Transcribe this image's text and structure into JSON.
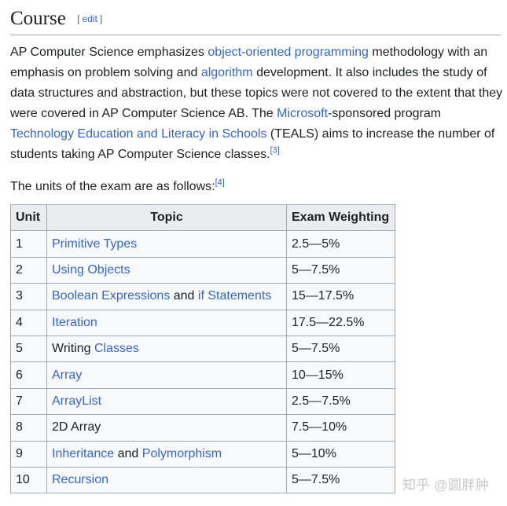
{
  "section": {
    "title": "Course",
    "edit_label": "edit",
    "bracket_open": "[",
    "bracket_close": "]"
  },
  "paragraph": {
    "s1": "AP Computer Science emphasizes ",
    "l1": "object-oriented programming",
    "s2": " methodology with an emphasis on problem solving and ",
    "l2": "algorithm",
    "s3": " development. It also includes the study of data structures and abstraction, but these topics were not covered to the extent that they were covered in AP Computer Science AB. The ",
    "l3": "Microsoft",
    "s4": "-sponsored program ",
    "l4": "Technology Education and Literacy in Schools",
    "s5": " (TEALS) aims to increase the number of students taking AP Computer Science classes.",
    "ref": "[3]"
  },
  "intro": {
    "text": "The units of the exam are as follows:",
    "ref": "[4]"
  },
  "table": {
    "headers": [
      "Unit",
      "Topic",
      "Exam Weighting"
    ],
    "rows": [
      {
        "unit": "1",
        "topic": [
          {
            "text": "Primitive Types",
            "link": true
          }
        ],
        "weight": "2.5—5%"
      },
      {
        "unit": "2",
        "topic": [
          {
            "text": "Using Objects",
            "link": true
          }
        ],
        "weight": "5—7.5%"
      },
      {
        "unit": "3",
        "topic": [
          {
            "text": "Boolean Expressions",
            "link": true
          },
          {
            "text": " and ",
            "link": false
          },
          {
            "text": "if Statements",
            "link": true
          }
        ],
        "weight": "15—17.5%"
      },
      {
        "unit": "4",
        "topic": [
          {
            "text": "Iteration",
            "link": true
          }
        ],
        "weight": "17.5—22.5%"
      },
      {
        "unit": "5",
        "topic": [
          {
            "text": "Writing ",
            "link": false
          },
          {
            "text": "Classes",
            "link": true
          }
        ],
        "weight": "5—7.5%"
      },
      {
        "unit": "6",
        "topic": [
          {
            "text": "Array",
            "link": true
          }
        ],
        "weight": "10—15%"
      },
      {
        "unit": "7",
        "topic": [
          {
            "text": "ArrayList",
            "link": true
          }
        ],
        "weight": "2.5—7.5%"
      },
      {
        "unit": "8",
        "topic": [
          {
            "text": "2D Array",
            "link": false
          }
        ],
        "weight": "7.5—10%"
      },
      {
        "unit": "9",
        "topic": [
          {
            "text": "Inheritance",
            "link": true
          },
          {
            "text": " and ",
            "link": false
          },
          {
            "text": "Polymorphism",
            "link": true
          }
        ],
        "weight": "5—10%"
      },
      {
        "unit": "10",
        "topic": [
          {
            "text": "Recursion",
            "link": true
          }
        ],
        "weight": "5—7.5%"
      }
    ]
  },
  "watermark": "知乎 @圆胖肿",
  "colors": {
    "link": "#3366cc",
    "text": "#202122",
    "border": "#a2a9b1",
    "header_bg": "#eaecf0",
    "cell_bg": "#f8f9fa"
  }
}
